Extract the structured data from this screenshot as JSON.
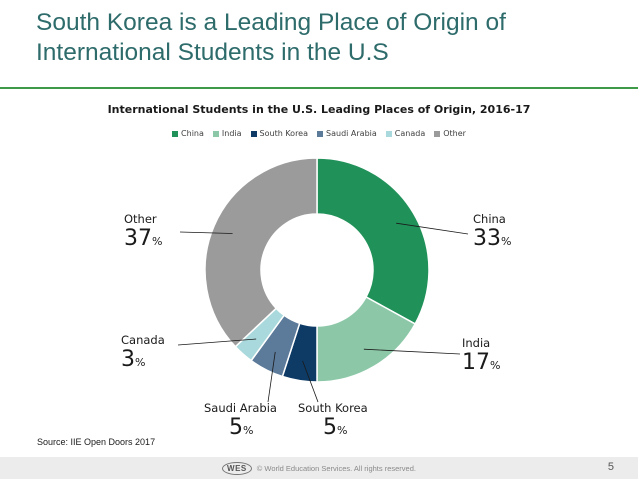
{
  "slide": {
    "title": "South Korea is a Leading Place of Origin of International Students in the U.S",
    "source": "Source:  IIE Open Doors 2017",
    "footer": {
      "logo_text": "WES",
      "copyright": "© World Education Services. All rights reserved.",
      "page_number": "5"
    }
  },
  "chart_data": {
    "type": "pie",
    "title": "International Students in the U.S. Leading Places of Origin, 2016-17",
    "legend_position": "top",
    "categories": [
      "China",
      "India",
      "South Korea",
      "Saudi Arabia",
      "Canada",
      "Other"
    ],
    "values": [
      33,
      17,
      5,
      5,
      3,
      37
    ],
    "value_display": [
      "33",
      "17",
      "5",
      "5",
      "3",
      "37"
    ],
    "unit": "%",
    "colors": [
      "#21915a",
      "#8cc8a8",
      "#0d3b66",
      "#5c7a9a",
      "#a9d9dc",
      "#9b9b9b"
    ],
    "hole_ratio": 0.5
  }
}
